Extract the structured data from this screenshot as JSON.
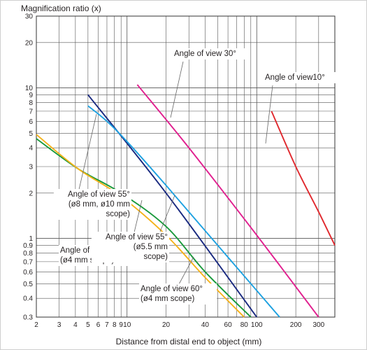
{
  "chart_data": {
    "type": "line",
    "xscale": "log",
    "yscale": "log",
    "xlim": [
      2,
      400
    ],
    "ylim": [
      0.3,
      30
    ],
    "ylabel": "Magnification ratio (x)",
    "xlabel": "Distance from distal end to object (mm)",
    "x_ticks": [
      2,
      3,
      4,
      5,
      6,
      7,
      8,
      9,
      10,
      20,
      30,
      40,
      50,
      60,
      70,
      80,
      90,
      100,
      200,
      300,
      400
    ],
    "x_tick_labels": [
      {
        "v": 2,
        "t": "2"
      },
      {
        "v": 3,
        "t": "3"
      },
      {
        "v": 4,
        "t": "4"
      },
      {
        "v": 5,
        "t": "5"
      },
      {
        "v": 6,
        "t": "6"
      },
      {
        "v": 7,
        "t": "7"
      },
      {
        "v": 8,
        "t": "8"
      },
      {
        "v": 9,
        "t": "9"
      },
      {
        "v": 10,
        "t": "10"
      },
      {
        "v": 20,
        "t": "20"
      },
      {
        "v": 40,
        "t": "40"
      },
      {
        "v": 60,
        "t": "60"
      },
      {
        "v": 80,
        "t": "80"
      },
      {
        "v": 100,
        "t": "100"
      },
      {
        "v": 200,
        "t": "200"
      },
      {
        "v": 300,
        "t": "300"
      }
    ],
    "y_ticks": [
      0.3,
      0.4,
      0.5,
      0.6,
      0.7,
      0.8,
      0.9,
      1,
      2,
      3,
      4,
      5,
      6,
      7,
      8,
      9,
      10,
      20,
      30
    ],
    "y_tick_labels": [
      {
        "v": 0.3,
        "t": "0.3"
      },
      {
        "v": 0.4,
        "t": "0.4"
      },
      {
        "v": 0.5,
        "t": "0.5"
      },
      {
        "v": 0.6,
        "t": "0.6"
      },
      {
        "v": 0.7,
        "t": "0.7"
      },
      {
        "v": 0.8,
        "t": "0.8"
      },
      {
        "v": 0.9,
        "t": "0.9"
      },
      {
        "v": 1,
        "t": "1"
      },
      {
        "v": 2,
        "t": "2"
      },
      {
        "v": 3,
        "t": "3"
      },
      {
        "v": 4,
        "t": "4"
      },
      {
        "v": 5,
        "t": "5"
      },
      {
        "v": 6,
        "t": "6"
      },
      {
        "v": 7,
        "t": "7"
      },
      {
        "v": 8,
        "t": "8"
      },
      {
        "v": 9,
        "t": "9"
      },
      {
        "v": 10,
        "t": "10"
      },
      {
        "v": 20,
        "t": "20"
      },
      {
        "v": 30,
        "t": "30"
      }
    ],
    "grid": true,
    "legend": "none",
    "series": [
      {
        "id": "aov10",
        "color": "#e0282d",
        "points": [
          [
            130,
            7
          ],
          [
            200,
            3
          ],
          [
            300,
            1.5
          ],
          [
            400,
            0.9
          ]
        ]
      },
      {
        "id": "aov30",
        "color": "#e0208f",
        "points": [
          [
            12,
            10.5
          ],
          [
            30,
            4
          ],
          [
            100,
            1.05
          ],
          [
            300,
            0.3
          ]
        ]
      },
      {
        "id": "aov55_55",
        "color": "#1a2a80",
        "points": [
          [
            5,
            9
          ],
          [
            20,
            2
          ],
          [
            100,
            0.3
          ]
        ]
      },
      {
        "id": "aov55_810",
        "color": "#1ea1e0",
        "points": [
          [
            5,
            7.6
          ],
          [
            7,
            6
          ],
          [
            10,
            4.4
          ],
          [
            20,
            2.25
          ],
          [
            50,
            0.9
          ],
          [
            150,
            0.3
          ]
        ]
      },
      {
        "id": "aov50",
        "color": "#1a9a3c",
        "points": [
          [
            2,
            4.6
          ],
          [
            4.2,
            2.9
          ],
          [
            9,
            2
          ],
          [
            20,
            1.2
          ],
          [
            40,
            0.6
          ],
          [
            90,
            0.3
          ]
        ]
      },
      {
        "id": "aov60",
        "color": "#f5b21a",
        "points": [
          [
            2,
            4.9
          ],
          [
            4.2,
            2.9
          ],
          [
            9,
            1.9
          ],
          [
            20,
            1.05
          ],
          [
            40,
            0.55
          ],
          [
            80,
            0.3
          ]
        ]
      }
    ],
    "annotations": [
      {
        "id": "ann10",
        "lines": [
          "Angle of view10°"
        ],
        "anchor": "start",
        "lx": 379,
        "ly": 114,
        "line": [
          [
            390,
            122
          ],
          [
            380,
            205
          ]
        ]
      },
      {
        "id": "ann30",
        "lines": [
          "Angle of view 30°"
        ],
        "anchor": "start",
        "lx": 249,
        "ly": 80,
        "line": [
          [
            262,
            88
          ],
          [
            244,
            168
          ]
        ]
      },
      {
        "id": "ann55a",
        "lines": [
          "Angle of view 55°",
          "(ø8 mm, ø10 mm",
          "scope)"
        ],
        "anchor": "end",
        "lx": 186,
        "ly": 281,
        "line": [
          [
            112,
            275
          ],
          [
            138,
            163
          ]
        ]
      },
      {
        "id": "ann50",
        "lines": [
          "Angle of view 50°",
          "(ø4 mm scope)"
        ],
        "anchor": "start",
        "lx": 86,
        "ly": 361,
        "line": [
          [
            186,
            357
          ],
          [
            203,
            286
          ]
        ]
      },
      {
        "id": "ann55b",
        "lines": [
          "Angle of view 55°",
          "(ø5.5 mm",
          "scope)"
        ],
        "anchor": "end",
        "lx": 240,
        "ly": 342,
        "line": [
          [
            227,
            336
          ],
          [
            250,
            279
          ]
        ]
      },
      {
        "id": "ann60",
        "lines": [
          "Angle of view 60°",
          "(ø4 mm scope)"
        ],
        "anchor": "start",
        "lx": 201,
        "ly": 416,
        "line": [
          [
            256,
            406
          ],
          [
            277,
            367
          ]
        ]
      }
    ]
  }
}
